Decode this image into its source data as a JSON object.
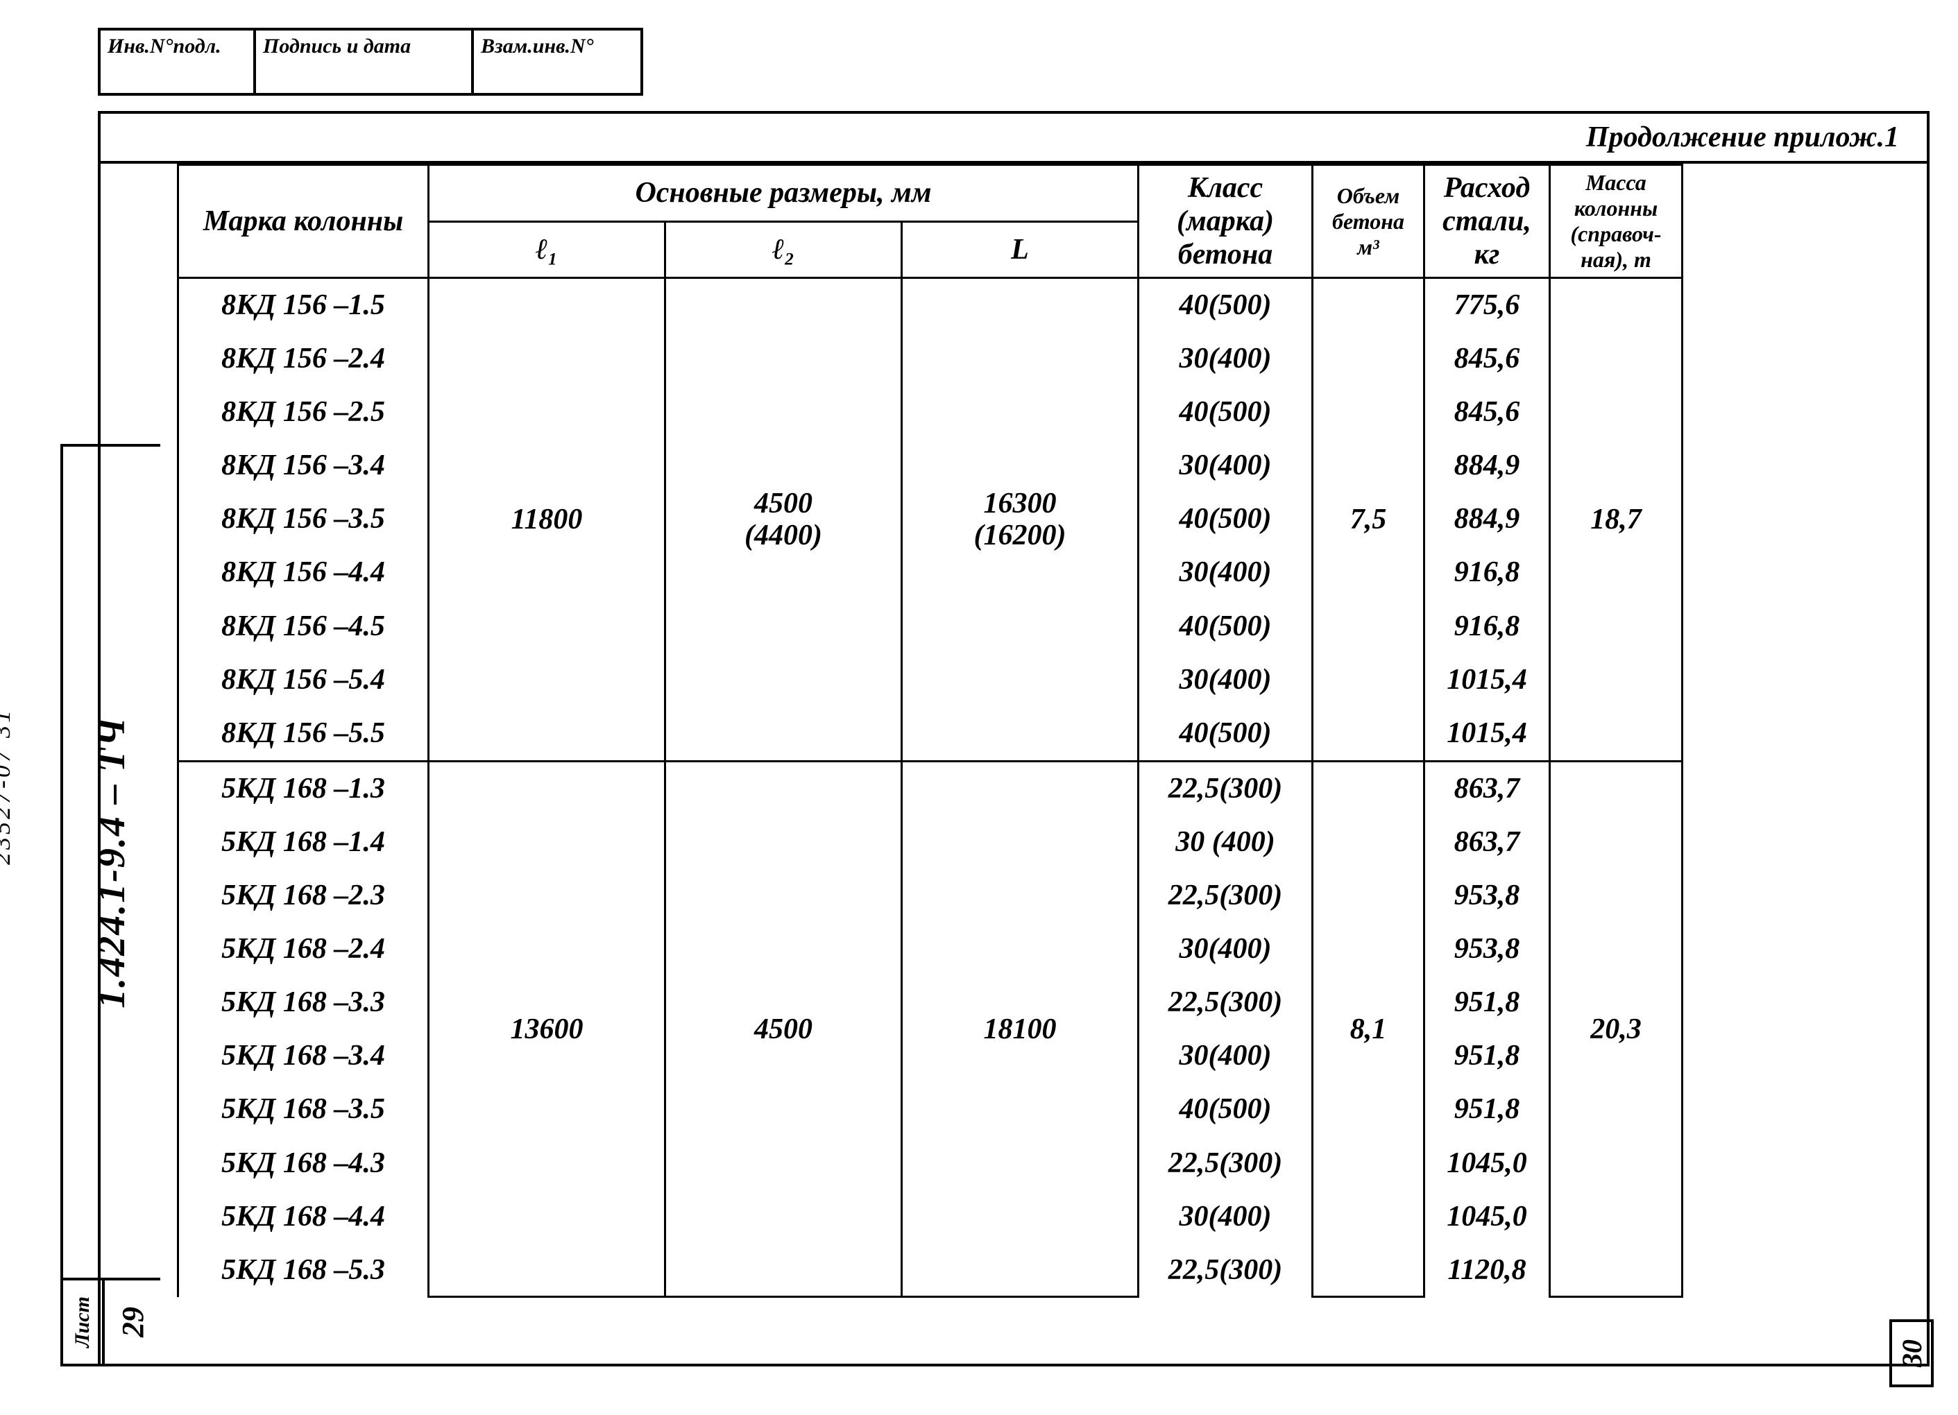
{
  "stamp": {
    "c1": "Инв.N°подл.",
    "c2": "Подпись и дата",
    "c3": "Взам.инв.N°"
  },
  "continuation": "Продолжение прилож.1",
  "headers": {
    "marka": "Марка колонны",
    "dims": "Основные   размеры,  мм",
    "l1": "ℓ₁",
    "l2": "ℓ₂",
    "L": "L",
    "klass": "Класс (марка) бетона",
    "obem": "Объем бетона м³",
    "rash": "Расход стали, кг",
    "massa": "Масса колонны (справоч- ная), т"
  },
  "group1": {
    "l1": "11800",
    "l2a": "4500",
    "l2b": "(4400)",
    "La": "16300",
    "Lb": "(16200)",
    "obem": "7,5",
    "massa": "18,7",
    "rows": [
      {
        "m": "8КД 156 –1.5",
        "k": "40(500)",
        "r": "775,6"
      },
      {
        "m": "8КД 156 –2.4",
        "k": "30(400)",
        "r": "845,6"
      },
      {
        "m": "8КД 156 –2.5",
        "k": "40(500)",
        "r": "845,6"
      },
      {
        "m": "8КД 156 –3.4",
        "k": "30(400)",
        "r": "884,9"
      },
      {
        "m": "8КД 156 –3.5",
        "k": "40(500)",
        "r": "884,9"
      },
      {
        "m": "8КД 156 –4.4",
        "k": "30(400)",
        "r": "916,8"
      },
      {
        "m": "8КД 156 –4.5",
        "k": "40(500)",
        "r": "916,8"
      },
      {
        "m": "8КД 156 –5.4",
        "k": "30(400)",
        "r": "1015,4"
      },
      {
        "m": "8КД 156 –5.5",
        "k": "40(500)",
        "r": "1015,4"
      }
    ]
  },
  "group2": {
    "l1": "13600",
    "l2": "4500",
    "L": "18100",
    "obem": "8,1",
    "massa": "20,3",
    "rows": [
      {
        "m": "5КД 168 –1.3",
        "k": "22,5(300)",
        "r": "863,7"
      },
      {
        "m": "5КД 168 –1.4",
        "k": "30 (400)",
        "r": "863,7"
      },
      {
        "m": "5КД 168 –2.3",
        "k": "22,5(300)",
        "r": "953,8"
      },
      {
        "m": "5КД 168 –2.4",
        "k": "30(400)",
        "r": "953,8"
      },
      {
        "m": "5КД 168 –3.3",
        "k": "22,5(300)",
        "r": "951,8"
      },
      {
        "m": "5КД 168 –3.4",
        "k": "30(400)",
        "r": "951,8"
      },
      {
        "m": "5КД 168 –3.5",
        "k": "40(500)",
        "r": "951,8"
      },
      {
        "m": "5КД 168 –4.3",
        "k": "22,5(300)",
        "r": "1045,0"
      },
      {
        "m": "5КД 168 –4.4",
        "k": "30(400)",
        "r": "1045,0"
      },
      {
        "m": "5КД 168 –5.3",
        "k": "22,5(300)",
        "r": "1120,8"
      }
    ]
  },
  "side": {
    "doc": "1.424.1-9.4 – ТЧ",
    "list_label": "Лист",
    "list_num": "29"
  },
  "archive": "23527-07   31",
  "page_right": "30"
}
